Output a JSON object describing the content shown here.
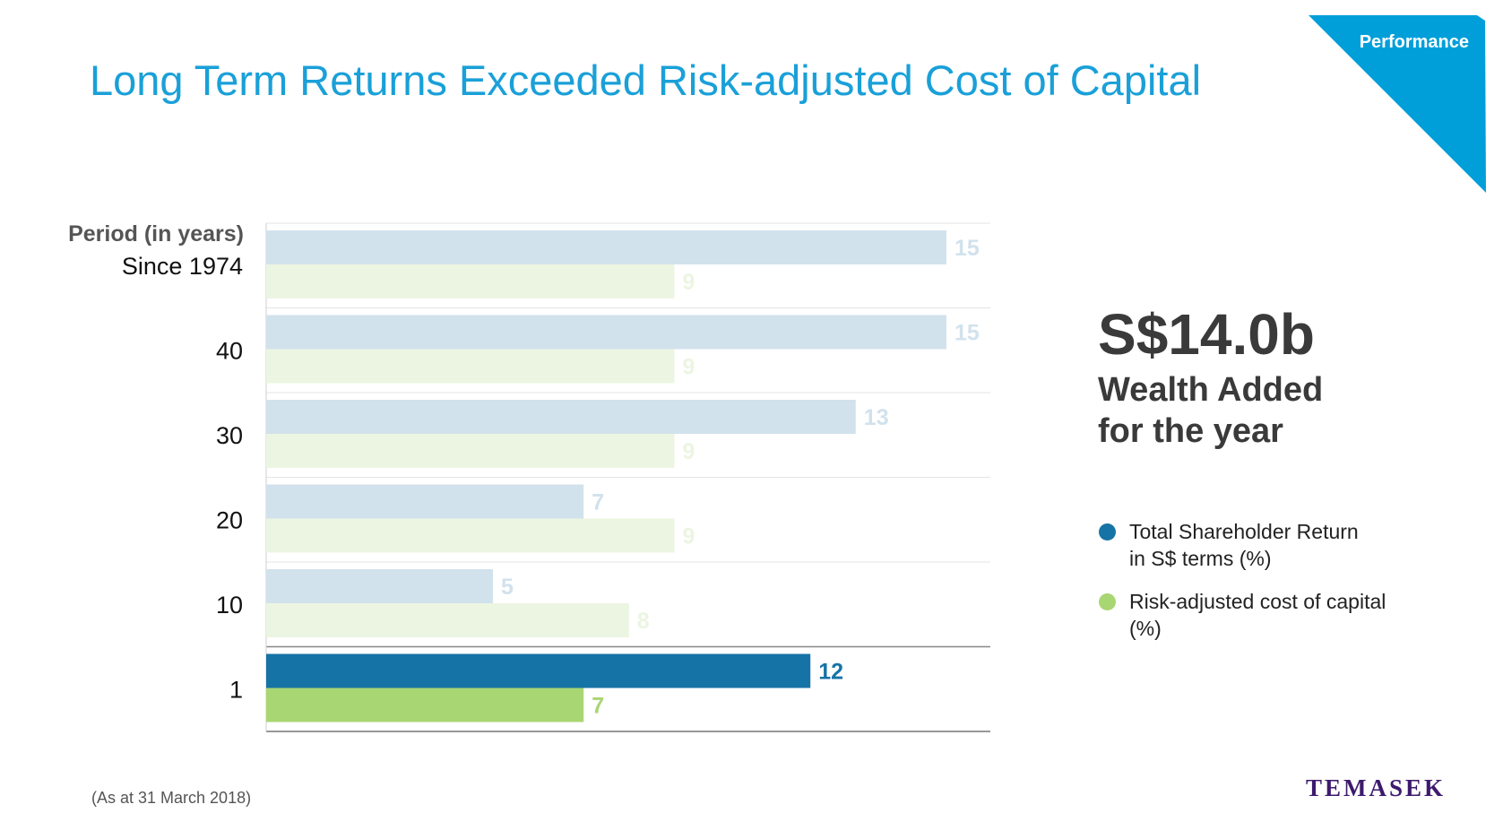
{
  "header": {
    "title": "Long Term Returns Exceeded Risk-adjusted Cost of Capital",
    "section_tag": "Performance",
    "tag_color": "#009fda"
  },
  "highlight": {
    "value": "S$14.0b",
    "label_line1": "Wealth Added",
    "label_line2": "for the year"
  },
  "legend": [
    {
      "label_line1": "Total Shareholder Return",
      "label_line2": "in S$ terms (%)",
      "color": "#1673a5"
    },
    {
      "label_line1": "Risk-adjusted cost of capital (%)",
      "label_line2": "",
      "color": "#a8d672"
    }
  ],
  "footnote": "(As at 31 March 2018)",
  "logo": "TEMASEK",
  "chart_data": {
    "type": "bar",
    "orientation": "horizontal",
    "category_header": "Period (in years)",
    "categories": [
      "Since 1974",
      "40",
      "30",
      "20",
      "10",
      "1"
    ],
    "series": [
      {
        "name": "Total Shareholder Return in S$ terms (%)",
        "values": [
          15,
          15,
          13,
          7,
          5,
          12
        ],
        "color": "#1673a5",
        "faded_color": "#d1e2ec"
      },
      {
        "name": "Risk-adjusted cost of capital (%)",
        "values": [
          9,
          9,
          9,
          9,
          8,
          7
        ],
        "color": "#a8d672",
        "faded_color": "#ecf5e2"
      }
    ],
    "emphasized_category": "1",
    "value_labels": true,
    "gridlines": "between categories"
  }
}
